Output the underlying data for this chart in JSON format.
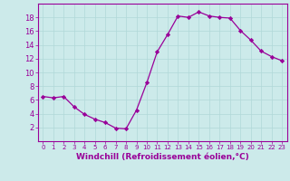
{
  "x": [
    0,
    1,
    2,
    3,
    4,
    5,
    6,
    7,
    8,
    9,
    10,
    11,
    12,
    13,
    14,
    15,
    16,
    17,
    18,
    19,
    20,
    21,
    22,
    23
  ],
  "y": [
    6.5,
    6.3,
    6.5,
    5.0,
    3.9,
    3.2,
    2.7,
    1.9,
    1.8,
    4.5,
    8.5,
    13.0,
    15.5,
    18.2,
    18.0,
    18.8,
    18.2,
    18.0,
    17.9,
    16.1,
    14.7,
    13.1,
    12.3,
    11.7
  ],
  "line_color": "#990099",
  "marker": "D",
  "marker_size": 2.2,
  "bg_color": "#cceaea",
  "grid_color": "#b0d8d8",
  "xlabel": "Windchill (Refroidissement éolien,°C)",
  "xlabel_color": "#990099",
  "tick_color": "#990099",
  "spine_color": "#990099",
  "ylim": [
    0,
    20
  ],
  "yticks": [
    2,
    4,
    6,
    8,
    10,
    12,
    14,
    16,
    18
  ],
  "xlim": [
    -0.5,
    23.5
  ],
  "xticks": [
    0,
    1,
    2,
    3,
    4,
    5,
    6,
    7,
    8,
    9,
    10,
    11,
    12,
    13,
    14,
    15,
    16,
    17,
    18,
    19,
    20,
    21,
    22,
    23
  ],
  "xtick_fontsize": 5.0,
  "ytick_fontsize": 6.0,
  "xlabel_fontsize": 6.5,
  "linewidth": 0.9
}
